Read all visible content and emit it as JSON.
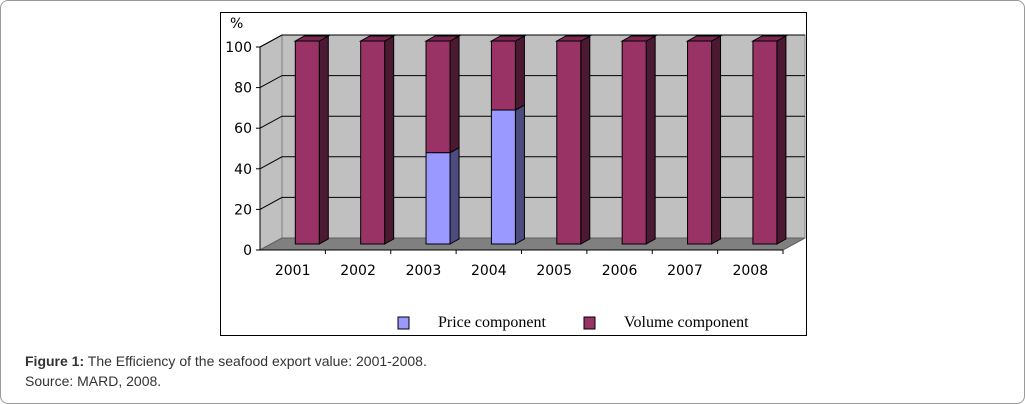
{
  "chart_data": {
    "type": "bar",
    "stacked": true,
    "style": "3d-column",
    "ylabel": "%",
    "ylim": [
      0,
      100
    ],
    "yticks": [
      0,
      20,
      40,
      60,
      80,
      100
    ],
    "grid": true,
    "legend_placement": "bottom",
    "categories": [
      "2001",
      "2002",
      "2003",
      "2004",
      "2005",
      "2006",
      "2007",
      "2008"
    ],
    "series": [
      {
        "name": "Price component",
        "color": "#9999ff",
        "values": [
          0,
          0,
          45,
          66,
          0,
          0,
          0,
          0
        ]
      },
      {
        "name": "Volume component",
        "color": "#993366",
        "values": [
          100,
          100,
          55,
          34,
          100,
          100,
          100,
          100
        ]
      }
    ]
  },
  "caption": {
    "label": "Figure 1:",
    "text": " The Efficiency of the seafood export value: 2001-2008.",
    "source": "Source: MARD, 2008."
  }
}
